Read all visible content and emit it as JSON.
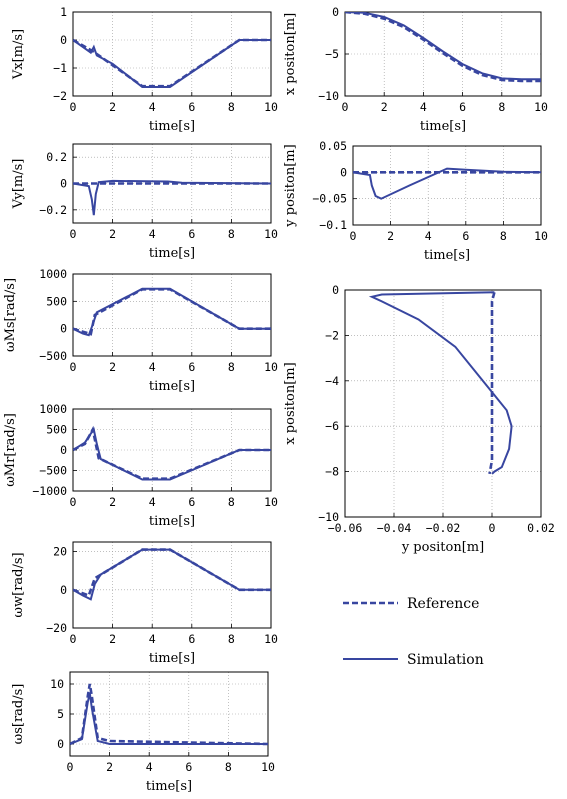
{
  "colors": {
    "series": "#3846a0",
    "grid": "#9a9a9a"
  },
  "legend": {
    "entries": [
      {
        "label": "Reference",
        "style": "dashed"
      },
      {
        "label": "Simulation",
        "style": "solid"
      }
    ]
  },
  "chart_data": [
    {
      "id": "vx",
      "type": "line",
      "xlabel": "time[s]",
      "ylabel": "Vx[m/s]",
      "xlim": [
        0,
        10
      ],
      "ylim": [
        -2,
        1
      ],
      "xticks": [
        "0",
        "2",
        "4",
        "6",
        "8",
        "10"
      ],
      "yticks": [
        "1",
        "0",
        "-1",
        "-2"
      ],
      "series": [
        {
          "style": "dashed",
          "x": [
            0,
            1,
            3.5,
            4.9,
            8.4,
            10
          ],
          "y": [
            0,
            -0.4,
            -1.65,
            -1.65,
            0,
            0
          ]
        },
        {
          "style": "solid",
          "x": [
            0,
            0.6,
            0.9,
            1.05,
            1.2,
            2,
            3.5,
            4.9,
            8.4,
            10
          ],
          "y": [
            0,
            -0.3,
            -0.45,
            -0.25,
            -0.55,
            -0.85,
            -1.68,
            -1.68,
            0,
            0
          ]
        }
      ]
    },
    {
      "id": "vy",
      "type": "line",
      "xlabel": "time[s]",
      "ylabel": "Vy[m/s]",
      "xlim": [
        0,
        10
      ],
      "ylim": [
        -0.3,
        0.3
      ],
      "xticks": [
        "0",
        "2",
        "4",
        "6",
        "8",
        "10"
      ],
      "yticks": [
        "0.2",
        "0",
        "-0.2"
      ],
      "series": [
        {
          "style": "dashed",
          "x": [
            0,
            10
          ],
          "y": [
            0,
            0
          ]
        },
        {
          "style": "solid",
          "x": [
            0,
            0.8,
            0.95,
            1.05,
            1.15,
            1.3,
            2,
            4.8,
            5.5,
            10
          ],
          "y": [
            0,
            -0.02,
            -0.12,
            -0.24,
            -0.08,
            0.01,
            0.02,
            0.015,
            0.005,
            0
          ]
        }
      ]
    },
    {
      "id": "wms",
      "type": "line",
      "xlabel": "time[s]",
      "ylabel": "ωMs[rad/s]",
      "xlim": [
        0,
        10
      ],
      "ylim": [
        -500,
        1000
      ],
      "xticks": [
        "0",
        "2",
        "4",
        "6",
        "8",
        "10"
      ],
      "yticks": [
        "1000",
        "500",
        "0",
        "-500"
      ],
      "series": [
        {
          "style": "dashed",
          "x": [
            0,
            0.9,
            1.1,
            3.5,
            4.9,
            8.4,
            10
          ],
          "y": [
            0,
            -100,
            250,
            720,
            720,
            0,
            0
          ]
        },
        {
          "style": "solid",
          "x": [
            0,
            0.5,
            0.8,
            1,
            1.2,
            3.5,
            4.9,
            8.4,
            10
          ],
          "y": [
            0,
            -90,
            -120,
            80,
            300,
            730,
            730,
            0,
            0
          ]
        }
      ]
    },
    {
      "id": "wmr",
      "type": "line",
      "xlabel": "time[s]",
      "ylabel": "ωMr[rad/s]",
      "xlim": [
        0,
        10
      ],
      "ylim": [
        -1000,
        1000
      ],
      "xticks": [
        "0",
        "2",
        "4",
        "6",
        "8",
        "10"
      ],
      "yticks": [
        "1000",
        "500",
        "0",
        "-500",
        "-1000"
      ],
      "series": [
        {
          "style": "dashed",
          "x": [
            0,
            0.6,
            1,
            1.3,
            3.5,
            4.9,
            8.4,
            10
          ],
          "y": [
            0,
            150,
            500,
            -200,
            -700,
            -700,
            0,
            0
          ]
        },
        {
          "style": "solid",
          "x": [
            0,
            0.6,
            0.9,
            1.05,
            1.2,
            1.4,
            3.5,
            4.9,
            8.4,
            10
          ],
          "y": [
            0,
            180,
            400,
            500,
            150,
            -220,
            -720,
            -720,
            0,
            0
          ]
        }
      ]
    },
    {
      "id": "ww",
      "type": "line",
      "xlabel": "time[s]",
      "ylabel": "ωw[rad/s]",
      "xlim": [
        0,
        10
      ],
      "ylim": [
        -20,
        25
      ],
      "xticks": [
        "0",
        "2",
        "4",
        "6",
        "8",
        "10"
      ],
      "yticks": [
        "20",
        "0",
        "-20"
      ],
      "series": [
        {
          "style": "dashed",
          "x": [
            0,
            0.8,
            1.1,
            3.5,
            4.9,
            8.4,
            10
          ],
          "y": [
            0,
            -3,
            6,
            21,
            21,
            0,
            0
          ]
        },
        {
          "style": "solid",
          "x": [
            0,
            0.5,
            0.9,
            1.1,
            1.4,
            3.5,
            4.9,
            8.4,
            10
          ],
          "y": [
            0,
            -3,
            -5,
            3,
            8,
            21,
            21,
            0,
            0
          ]
        }
      ]
    },
    {
      "id": "ws",
      "type": "line",
      "xlabel": "time[s]",
      "ylabel": "ωs[rad/s]",
      "xlim": [
        0,
        10
      ],
      "ylim": [
        -2,
        12
      ],
      "xticks": [
        "0",
        "2",
        "4",
        "6",
        "8",
        "10"
      ],
      "yticks": [
        "10",
        "5",
        "0"
      ],
      "series": [
        {
          "style": "dashed",
          "x": [
            0,
            0.6,
            0.9,
            1,
            1.1,
            1.4,
            2,
            10
          ],
          "y": [
            0,
            1,
            8,
            10,
            8,
            1,
            0.5,
            0
          ]
        },
        {
          "style": "solid",
          "x": [
            0,
            0.6,
            0.9,
            1,
            1.1,
            1.4,
            2,
            10
          ],
          "y": [
            0,
            0.8,
            7,
            8.5,
            6,
            0.5,
            0,
            0
          ]
        }
      ]
    },
    {
      "id": "xpos",
      "type": "line",
      "xlabel": "time[s]",
      "ylabel": "x positon[m]",
      "xlim": [
        0,
        10
      ],
      "ylim": [
        -10,
        0
      ],
      "xticks": [
        "0",
        "2",
        "4",
        "6",
        "8",
        "10"
      ],
      "yticks": [
        "0",
        "-5",
        "-10"
      ],
      "series": [
        {
          "style": "dashed",
          "x": [
            0,
            1,
            2,
            3,
            4,
            5,
            6,
            7,
            8,
            9,
            10
          ],
          "y": [
            0,
            -0.2,
            -0.8,
            -1.8,
            -3.3,
            -4.9,
            -6.4,
            -7.5,
            -8.1,
            -8.2,
            -8.2
          ]
        },
        {
          "style": "solid",
          "x": [
            0,
            1,
            2,
            3,
            4,
            5,
            6,
            7,
            8,
            9,
            10
          ],
          "y": [
            0,
            -0.1,
            -0.6,
            -1.6,
            -3.1,
            -4.7,
            -6.2,
            -7.3,
            -7.9,
            -8.0,
            -8.0
          ]
        }
      ]
    },
    {
      "id": "ypos",
      "type": "line",
      "xlabel": "time[s]",
      "ylabel": "y positon[m]",
      "xlim": [
        0,
        10
      ],
      "ylim": [
        -0.1,
        0.05
      ],
      "xticks": [
        "0",
        "2",
        "4",
        "6",
        "8",
        "10"
      ],
      "yticks": [
        "0.05",
        "0",
        "-0.05",
        "-0.1"
      ],
      "series": [
        {
          "style": "dashed",
          "x": [
            0,
            5,
            10
          ],
          "y": [
            0,
            0,
            0
          ]
        },
        {
          "style": "solid",
          "x": [
            0,
            0.9,
            1,
            1.2,
            1.5,
            3,
            5,
            6,
            8,
            10
          ],
          "y": [
            0,
            -0.005,
            -0.025,
            -0.045,
            -0.05,
            -0.025,
            0.007,
            0.005,
            0.001,
            0
          ]
        }
      ]
    },
    {
      "id": "xy",
      "type": "line",
      "xlabel": "y positon[m]",
      "ylabel": "x positon[m]",
      "xlim": [
        -0.06,
        0.02
      ],
      "ylim": [
        -10,
        0
      ],
      "xticks": [
        "-0.06",
        "-0.04",
        "-0.02",
        "0",
        "0.02"
      ],
      "yticks": [
        "0",
        "-2",
        "-4",
        "-6",
        "-8",
        "-10"
      ],
      "series": [
        {
          "style": "dashed",
          "x": [
            0.001,
            0,
            0,
            0,
            0,
            -0.001
          ],
          "y": [
            -0.1,
            -0.5,
            -2,
            -5,
            -7.5,
            -8.1
          ]
        },
        {
          "style": "solid",
          "x": [
            0.001,
            -0.045,
            -0.049,
            -0.045,
            -0.03,
            -0.015,
            0,
            0.006,
            0.008,
            0.007,
            0.004,
            0.001,
            0
          ],
          "y": [
            -0.1,
            -0.2,
            -0.3,
            -0.5,
            -1.3,
            -2.5,
            -4.5,
            -5.3,
            -6,
            -7,
            -7.8,
            -8,
            -8.1
          ]
        }
      ]
    }
  ]
}
